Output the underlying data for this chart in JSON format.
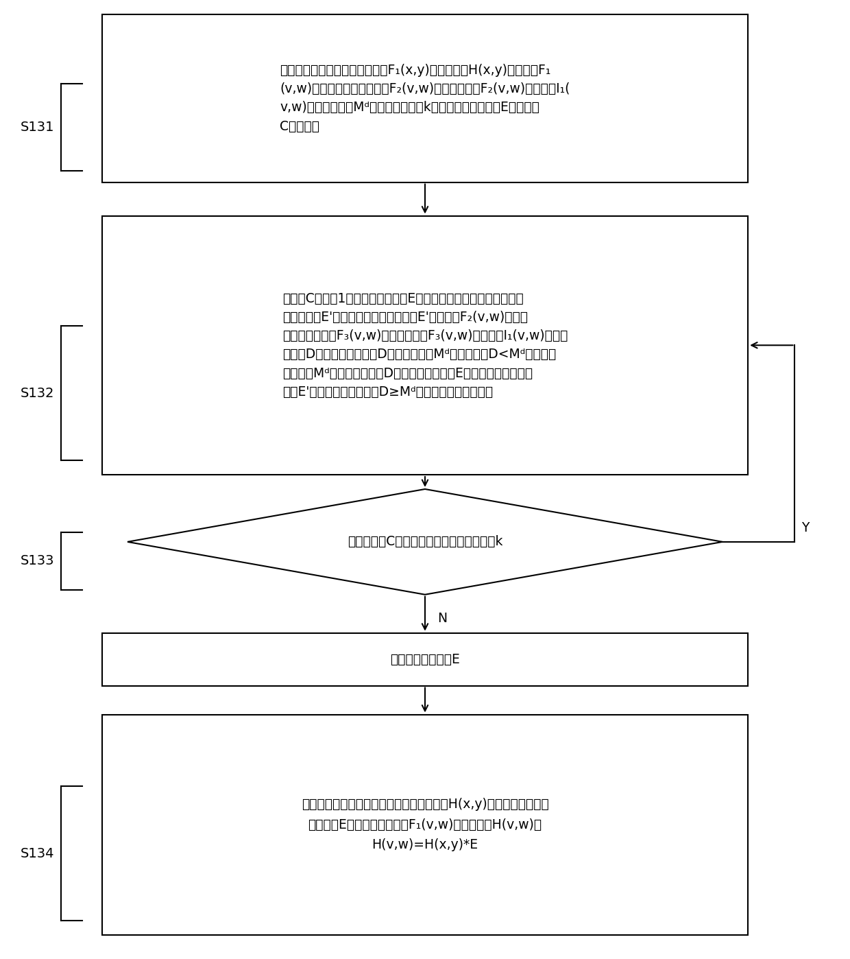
{
  "bg_color": "#ffffff",
  "lw": 1.5,
  "fig_width": 12.4,
  "fig_height": 13.98,
  "dpi": 100,
  "font_size": 13.5,
  "label_font_size": 14,
  "s131_text": "根据已计算出单应矩阵的子区域F₁(x,y)的单应矩阵H(x,y)对子区域F₁\n(v,w)进行变换，得到子区域F₂(v,w)，计算子区域F₂(v,w)及子区域I₁(\nv,w)的均方误差值Mᵈ；设定迭代次数k、初始最优变换矩阵E和计数器\nC的初始值",
  "s132_text": "计数器C的值加1，对最优变换矩阵E进行随机扰动变换，得到随机扰\n动变换矩阵E'；使用随机扰动变换矩阵E'对子区域F₂(v,w)进行变\n换，生成子区域F₃(v,w)；计算子区域F₃(v,w)及子区域I₁(v,w)的均方\n误差值D；比较均方误差值D和均方误差值Mᵈ的大小，若D<Mᵈ，则将均\n方误差值Mᵈ更新为均方误差D，将最优变换矩阵E更新为随机扰动变换\n矩阵E'，执行下一步骤；若D≥Mᵈ，则直接执行下一步骤",
  "s133_text": "判断计数器C的值是否小于设定的迭代次数k",
  "s133out_text": "输出最优变换矩阵E",
  "s134_text": "根据已计算出单应矩阵的子区域的单应矩阵H(x,y)和所述输出的最优\n变换矩阵E，计算相邻子区域F₁(v,w)的单应矩阵H(v,w)，\nH(v,w)=H(x,y)*E"
}
